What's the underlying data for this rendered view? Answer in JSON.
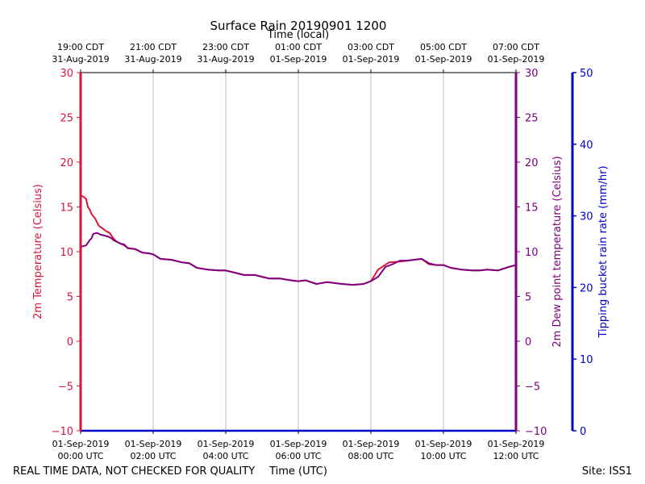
{
  "chart_data": {
    "type": "line",
    "title": "Surface Rain 20190901 1200",
    "top_axis_label": "Time (local)",
    "xlabel": "Time (UTC)",
    "footer_left": "REAL TIME DATA, NOT CHECKED FOR QUALITY",
    "footer_right": "Site: ISS1",
    "x_range_hours": [
      0,
      12
    ],
    "grid": "vertical",
    "bottom_ticks": [
      {
        "hour": 0,
        "date": "01-Sep-2019",
        "time": "00:00 UTC"
      },
      {
        "hour": 2,
        "date": "01-Sep-2019",
        "time": "02:00 UTC"
      },
      {
        "hour": 4,
        "date": "01-Sep-2019",
        "time": "04:00 UTC"
      },
      {
        "hour": 6,
        "date": "01-Sep-2019",
        "time": "06:00 UTC"
      },
      {
        "hour": 8,
        "date": "01-Sep-2019",
        "time": "08:00 UTC"
      },
      {
        "hour": 10,
        "date": "01-Sep-2019",
        "time": "10:00 UTC"
      },
      {
        "hour": 12,
        "date": "01-Sep-2019",
        "time": "12:00 UTC"
      }
    ],
    "top_ticks": [
      {
        "hour": 0,
        "time": "19:00 CDT",
        "date": "31-Aug-2019"
      },
      {
        "hour": 2,
        "time": "21:00 CDT",
        "date": "31-Aug-2019"
      },
      {
        "hour": 4,
        "time": "23:00 CDT",
        "date": "31-Aug-2019"
      },
      {
        "hour": 6,
        "time": "01:00 CDT",
        "date": "01-Sep-2019"
      },
      {
        "hour": 8,
        "time": "03:00 CDT",
        "date": "01-Sep-2019"
      },
      {
        "hour": 10,
        "time": "05:00 CDT",
        "date": "01-Sep-2019"
      },
      {
        "hour": 12,
        "time": "07:00 CDT",
        "date": "01-Sep-2019"
      }
    ],
    "axes": {
      "temperature": {
        "label": "2m Temperature (Celsius)",
        "color": "#dc143c",
        "ylim": [
          -10,
          30
        ],
        "ticks": [
          "−10",
          "−5",
          "0",
          "5",
          "10",
          "15",
          "20",
          "25",
          "30"
        ]
      },
      "dewpoint": {
        "label": "2m Dew point temperature (Celsius)",
        "color": "#800080",
        "ylim": [
          -10,
          30
        ],
        "ticks": [
          "−10",
          "−5",
          "0",
          "5",
          "10",
          "15",
          "20",
          "25",
          "30"
        ]
      },
      "rain_rate": {
        "label": "Tipping bucket rain rate (mm/hr)",
        "color": "#0000cd",
        "ylim": [
          0,
          50
        ],
        "ticks": [
          "0",
          "10",
          "20",
          "30",
          "40",
          "50"
        ]
      }
    },
    "series": [
      {
        "name": "2m Temperature",
        "axis": "temperature",
        "color": "#dc143c",
        "x": [
          0,
          0.05,
          0.15,
          0.2,
          0.25,
          0.3,
          0.4,
          0.5,
          0.6,
          0.7,
          0.8,
          0.9,
          1.0,
          1.1,
          1.2,
          1.3,
          1.5,
          1.7,
          1.9,
          2.0,
          2.2,
          2.5,
          2.8,
          3.0,
          3.2,
          3.5,
          3.8,
          4.0,
          4.2,
          4.5,
          4.8,
          5.0,
          5.2,
          5.5,
          5.8,
          6.0,
          6.2,
          6.5,
          6.8,
          7.0,
          7.2,
          7.5,
          7.8,
          8.0,
          8.2,
          8.5,
          8.8,
          9.0,
          9.2,
          9.4,
          9.6,
          9.8,
          10.0,
          10.2,
          10.5,
          10.8,
          11.0,
          11.2,
          11.5,
          11.8,
          12.0
        ],
        "values": [
          16.3,
          16.2,
          15.9,
          15.0,
          14.7,
          14.2,
          13.7,
          12.9,
          12.6,
          12.3,
          12.1,
          11.5,
          11.1,
          10.9,
          10.7,
          10.4,
          10.3,
          9.9,
          9.8,
          9.7,
          9.2,
          9.1,
          8.8,
          8.7,
          8.2,
          8.0,
          7.9,
          7.9,
          7.7,
          7.4,
          7.4,
          7.2,
          7.0,
          7.0,
          6.8,
          6.7,
          6.8,
          6.4,
          6.6,
          6.5,
          6.4,
          6.3,
          6.4,
          6.7,
          8.0,
          8.8,
          8.9,
          9.0,
          9.1,
          9.2,
          8.6,
          8.5,
          8.5,
          8.2,
          8.0,
          7.9,
          7.9,
          8.0,
          7.9,
          8.3,
          8.5
        ]
      },
      {
        "name": "2m Dew point temperature",
        "axis": "dewpoint",
        "color": "#800080",
        "x": [
          0,
          0.05,
          0.15,
          0.25,
          0.3,
          0.35,
          0.45,
          0.55,
          0.65,
          0.75,
          0.85,
          0.9,
          1.0,
          1.1,
          1.2,
          1.3,
          1.5,
          1.7,
          1.9,
          2.0,
          2.2,
          2.5,
          2.8,
          3.0,
          3.2,
          3.5,
          3.8,
          4.0,
          4.2,
          4.5,
          4.8,
          5.0,
          5.2,
          5.5,
          5.8,
          6.0,
          6.2,
          6.5,
          6.8,
          7.0,
          7.2,
          7.5,
          7.8,
          8.0,
          8.2,
          8.4,
          8.6,
          8.8,
          9.0,
          9.2,
          9.4,
          9.6,
          9.8,
          10.0,
          10.2,
          10.5,
          10.8,
          11.0,
          11.2,
          11.5,
          11.8,
          12.0
        ],
        "values": [
          10.5,
          10.6,
          10.7,
          11.3,
          11.5,
          12.0,
          12.1,
          11.9,
          11.8,
          11.7,
          11.5,
          11.3,
          11.1,
          10.9,
          10.8,
          10.4,
          10.3,
          9.9,
          9.8,
          9.7,
          9.2,
          9.1,
          8.8,
          8.7,
          8.2,
          8.0,
          7.9,
          7.9,
          7.7,
          7.4,
          7.4,
          7.2,
          7.0,
          7.0,
          6.8,
          6.7,
          6.8,
          6.4,
          6.6,
          6.5,
          6.4,
          6.3,
          6.4,
          6.7,
          7.2,
          8.3,
          8.6,
          9.0,
          9.0,
          9.1,
          9.2,
          8.7,
          8.5,
          8.5,
          8.2,
          8.0,
          7.9,
          7.9,
          8.0,
          7.9,
          8.3,
          8.5
        ]
      },
      {
        "name": "Tipping bucket rain rate",
        "axis": "rain_rate",
        "color": "#0000cd",
        "x": [
          0,
          12
        ],
        "values": [
          0,
          0
        ]
      }
    ]
  }
}
